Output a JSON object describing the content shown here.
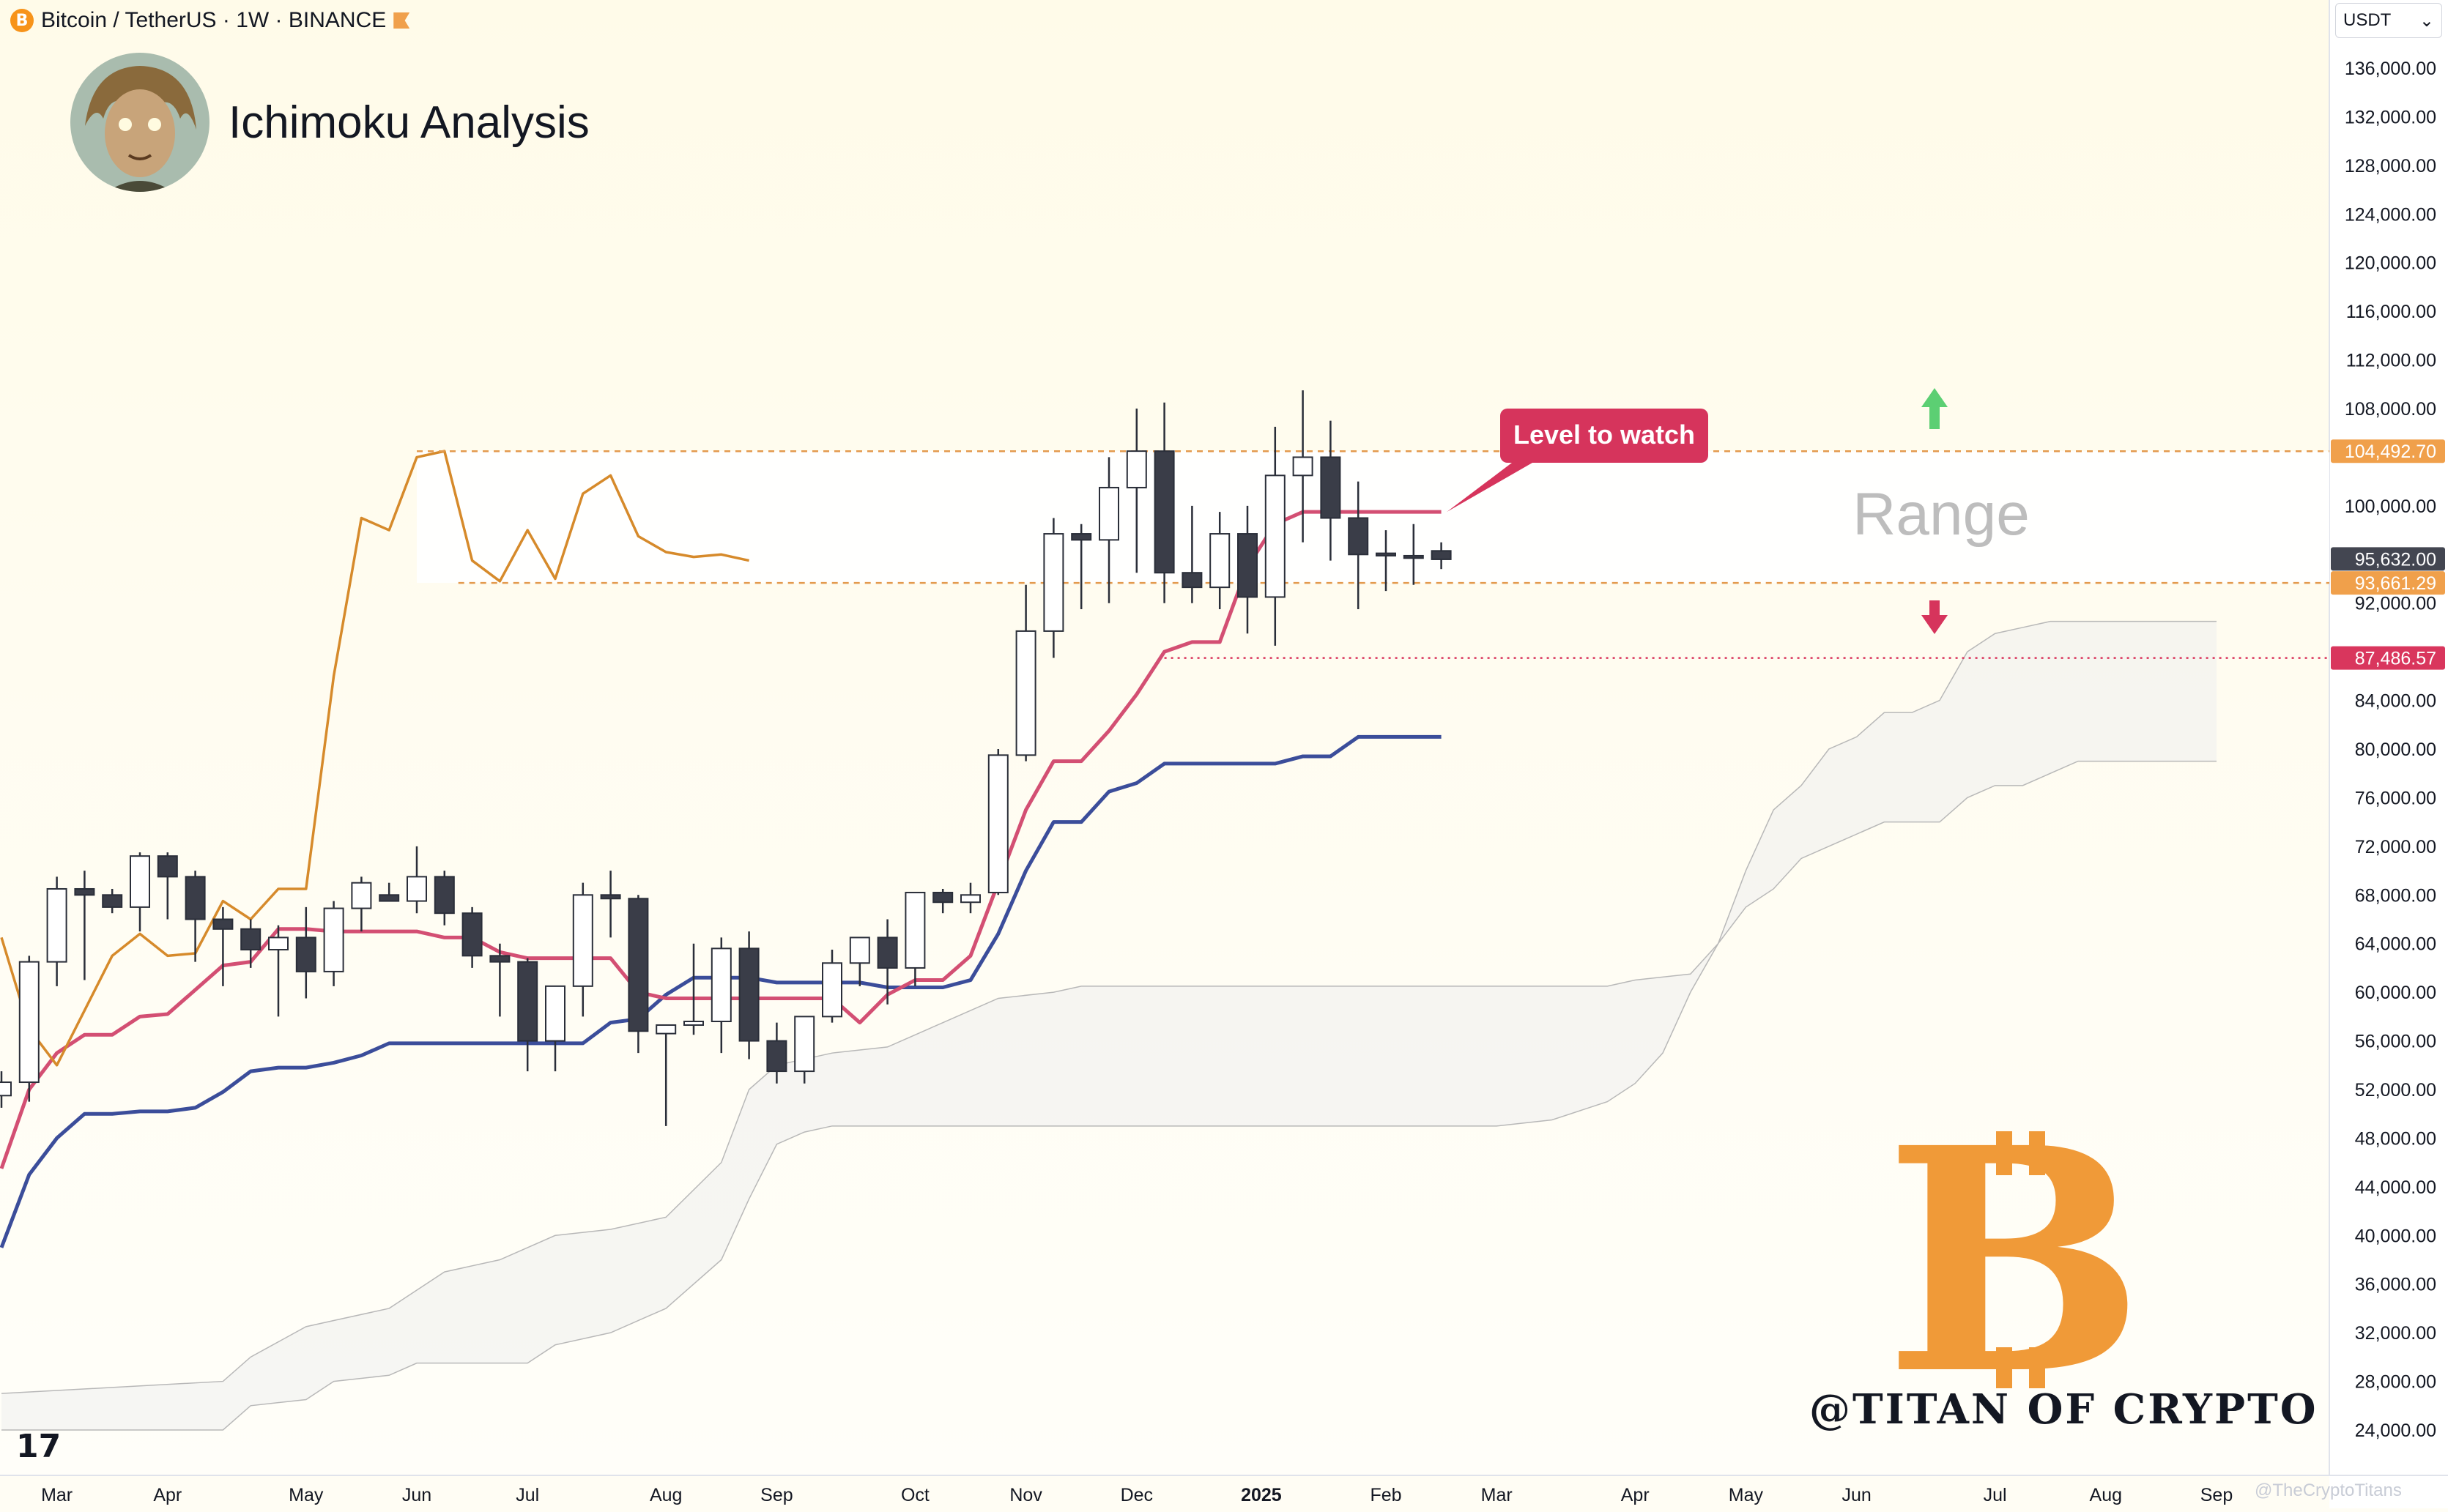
{
  "header": {
    "symbol": "Bitcoin / TetherUS · 1W · BINANCE",
    "coin_icon": "bitcoin-icon"
  },
  "branding": {
    "title": "Ichimoku Analysis",
    "watermark": "@TITAN OF CRYPTO",
    "corner_credit": "@TheCryptoTitans",
    "logo_glyph": "B",
    "tv_glyph": "17"
  },
  "currency_selector": {
    "value": "USDT"
  },
  "chart_data": {
    "type": "candlestick",
    "timeframe": "1W",
    "exchange": "BINANCE",
    "ylim": [
      22000,
      139000
    ],
    "ticks": [
      "136,000.00",
      "132,000.00",
      "128,000.00",
      "124,000.00",
      "120,000.00",
      "116,000.00",
      "112,000.00",
      "108,000.00",
      "100,000.00",
      "92,000.00",
      "84,000.00",
      "80,000.00",
      "76,000.00",
      "72,000.00",
      "68,000.00",
      "64,000.00",
      "60,000.00",
      "56,000.00",
      "52,000.00",
      "48,000.00",
      "44,000.00",
      "40,000.00",
      "36,000.00",
      "32,000.00",
      "28,000.00",
      "24,000.00"
    ],
    "tick_values": [
      136000,
      132000,
      128000,
      124000,
      120000,
      116000,
      112000,
      108000,
      100000,
      92000,
      84000,
      80000,
      76000,
      72000,
      68000,
      64000,
      60000,
      56000,
      52000,
      48000,
      44000,
      40000,
      36000,
      32000,
      28000,
      24000
    ],
    "x_labels": [
      "Mar",
      "Apr",
      "May",
      "Jun",
      "Jul",
      "Aug",
      "Sep",
      "Oct",
      "Nov",
      "Dec",
      "2025",
      "Feb",
      "Mar",
      "Apr",
      "May",
      "Jun",
      "Jul",
      "Aug",
      "Sep"
    ],
    "x_label_weeks": [
      2,
      6,
      11,
      15,
      19,
      24,
      28,
      33,
      37,
      41,
      45.5,
      50,
      54,
      59,
      63,
      67,
      72,
      76,
      80
    ],
    "price_badges": [
      {
        "label": "104,492.70",
        "value": 104492.7,
        "color": "#f0a04b"
      },
      {
        "label": "95,632.00",
        "value": 95632,
        "color": "#434651"
      },
      {
        "label": "93,661.29",
        "value": 93661.29,
        "color": "#f0a04b"
      },
      {
        "label": "87,486.57",
        "value": 87486.57,
        "color": "#d9365d"
      }
    ],
    "annotations": {
      "callout": "Level to watch",
      "range_label": "Range",
      "range_top": 104492.7,
      "range_bottom": 93661.29,
      "support": 87486.57
    },
    "candles": [
      [
        0,
        51500,
        53500,
        50500,
        52600
      ],
      [
        1,
        52600,
        63000,
        51000,
        62500
      ],
      [
        2,
        62500,
        69500,
        60500,
        68500
      ],
      [
        3,
        68500,
        70000,
        61000,
        68000
      ],
      [
        4,
        68000,
        68500,
        66500,
        67000
      ],
      [
        5,
        67000,
        71500,
        65000,
        71200
      ],
      [
        6,
        71200,
        71500,
        66000,
        69500
      ],
      [
        7,
        69500,
        70000,
        62500,
        66000
      ],
      [
        8,
        66000,
        67000,
        60500,
        65200
      ],
      [
        9,
        65200,
        66000,
        62000,
        63500
      ],
      [
        10,
        63500,
        65500,
        58000,
        64500
      ],
      [
        11,
        64500,
        67000,
        59500,
        61700
      ],
      [
        12,
        61700,
        67500,
        60500,
        66900
      ],
      [
        13,
        66900,
        69500,
        65000,
        69000
      ],
      [
        14,
        68000,
        69000,
        67500,
        67500
      ],
      [
        15,
        67500,
        72000,
        66500,
        69500
      ],
      [
        16,
        69500,
        70000,
        65500,
        66500
      ],
      [
        17,
        66500,
        67000,
        62000,
        63000
      ],
      [
        18,
        63000,
        64000,
        58000,
        62500
      ],
      [
        19,
        62500,
        62800,
        53500,
        56000
      ],
      [
        20,
        56000,
        60500,
        53500,
        60500
      ],
      [
        21,
        60500,
        69000,
        58000,
        68000
      ],
      [
        22,
        68000,
        70000,
        64500,
        67700
      ],
      [
        23,
        67700,
        68000,
        55000,
        56800
      ],
      [
        24,
        56600,
        57000,
        49000,
        57300
      ],
      [
        25,
        57300,
        64000,
        56500,
        57600
      ],
      [
        26,
        57600,
        64500,
        55000,
        63600
      ],
      [
        27,
        63600,
        65000,
        54500,
        56000
      ],
      [
        28,
        56000,
        57500,
        52500,
        53500
      ],
      [
        29,
        53500,
        58000,
        52500,
        58000
      ],
      [
        30,
        58000,
        63500,
        57500,
        62400
      ],
      [
        31,
        62400,
        64500,
        60500,
        64500
      ],
      [
        32,
        64500,
        66000,
        59000,
        62000
      ],
      [
        33,
        62000,
        68000,
        60500,
        68200
      ],
      [
        34,
        68200,
        68500,
        66500,
        67400
      ],
      [
        35,
        67400,
        69000,
        66500,
        68000
      ],
      [
        36,
        68200,
        80000,
        68000,
        79500
      ],
      [
        37,
        79500,
        93500,
        79000,
        89700
      ],
      [
        38,
        89700,
        99000,
        87500,
        97700
      ],
      [
        39,
        97700,
        98500,
        91500,
        97200
      ],
      [
        40,
        97200,
        104000,
        92000,
        101500
      ],
      [
        41,
        101500,
        108000,
        94500,
        104500
      ],
      [
        42,
        104500,
        108500,
        92000,
        94500
      ],
      [
        43,
        94500,
        100000,
        92000,
        93300
      ],
      [
        44,
        93300,
        99500,
        91500,
        97700
      ],
      [
        45,
        97700,
        100000,
        89500,
        92500
      ],
      [
        46,
        92500,
        106500,
        88500,
        102500
      ],
      [
        47,
        102500,
        109500,
        97000,
        104000
      ],
      [
        48,
        104000,
        107000,
        95500,
        99000
      ],
      [
        49,
        99000,
        102000,
        91500,
        96000
      ],
      [
        50,
        96100,
        98000,
        93000,
        95900
      ],
      [
        51,
        95900,
        98500,
        93500,
        95700
      ],
      [
        52,
        96300,
        97000,
        94800,
        95600
      ]
    ],
    "series": [
      {
        "name": "",
        "color": "#3b4d9a",
        "values": [
          [
            0,
            39000
          ],
          [
            1,
            45000
          ],
          [
            2,
            48000
          ],
          [
            3,
            50000
          ],
          [
            4,
            50000
          ],
          [
            5,
            50200
          ],
          [
            6,
            50200
          ],
          [
            7,
            50500
          ],
          [
            8,
            51800
          ],
          [
            9,
            53500
          ],
          [
            10,
            53800
          ],
          [
            11,
            53800
          ],
          [
            12,
            54200
          ],
          [
            13,
            54800
          ],
          [
            14,
            55800
          ],
          [
            15,
            55800
          ],
          [
            16,
            55800
          ],
          [
            17,
            55800
          ],
          [
            18,
            55800
          ],
          [
            19,
            55800
          ],
          [
            20,
            55800
          ],
          [
            21,
            55800
          ],
          [
            22,
            57500
          ],
          [
            23,
            57800
          ],
          [
            24,
            59800
          ],
          [
            25,
            61200
          ],
          [
            26,
            61200
          ],
          [
            27,
            61200
          ],
          [
            28,
            60800
          ],
          [
            29,
            60800
          ],
          [
            30,
            60800
          ],
          [
            31,
            60800
          ],
          [
            32,
            60400
          ],
          [
            33,
            60400
          ],
          [
            34,
            60400
          ],
          [
            35,
            61000
          ],
          [
            36,
            64800
          ],
          [
            37,
            70000
          ],
          [
            38,
            74000
          ],
          [
            39,
            74000
          ],
          [
            40,
            76500
          ],
          [
            41,
            77200
          ],
          [
            42,
            78800
          ],
          [
            43,
            78800
          ],
          [
            44,
            78800
          ],
          [
            45,
            78800
          ],
          [
            46,
            78800
          ],
          [
            47,
            79400
          ],
          [
            48,
            79400
          ],
          [
            49,
            81000
          ],
          [
            50,
            81000
          ],
          [
            51,
            81000
          ],
          [
            52,
            81000
          ]
        ]
      },
      {
        "name": "",
        "color": "#d34f73",
        "values": [
          [
            0,
            45500
          ],
          [
            1,
            52000
          ],
          [
            2,
            55000
          ],
          [
            3,
            56500
          ],
          [
            4,
            56500
          ],
          [
            5,
            58000
          ],
          [
            6,
            58200
          ],
          [
            7,
            60200
          ],
          [
            8,
            62200
          ],
          [
            9,
            62500
          ],
          [
            10,
            65200
          ],
          [
            11,
            65200
          ],
          [
            12,
            65000
          ],
          [
            13,
            65000
          ],
          [
            14,
            65000
          ],
          [
            15,
            65000
          ],
          [
            16,
            64500
          ],
          [
            17,
            64500
          ],
          [
            18,
            63300
          ],
          [
            19,
            62800
          ],
          [
            20,
            62800
          ],
          [
            21,
            62800
          ],
          [
            22,
            62800
          ],
          [
            23,
            60000
          ],
          [
            24,
            59500
          ],
          [
            25,
            59500
          ],
          [
            26,
            59500
          ],
          [
            27,
            59500
          ],
          [
            28,
            59500
          ],
          [
            29,
            59500
          ],
          [
            30,
            59500
          ],
          [
            31,
            57500
          ],
          [
            32,
            59800
          ],
          [
            33,
            61000
          ],
          [
            34,
            61000
          ],
          [
            35,
            63000
          ],
          [
            36,
            69000
          ],
          [
            37,
            75000
          ],
          [
            38,
            79000
          ],
          [
            39,
            79000
          ],
          [
            40,
            81500
          ],
          [
            41,
            84500
          ],
          [
            42,
            88000
          ],
          [
            43,
            88800
          ],
          [
            44,
            88800
          ],
          [
            45,
            95000
          ],
          [
            46,
            98500
          ],
          [
            47,
            99500
          ],
          [
            48,
            99500
          ],
          [
            49,
            99500
          ],
          [
            50,
            99500
          ],
          [
            51,
            99500
          ],
          [
            52,
            99500
          ]
        ]
      },
      {
        "name": "",
        "color": "#d68a2b",
        "values": [
          [
            0,
            64500
          ],
          [
            1,
            57000
          ],
          [
            2,
            54000
          ],
          [
            3,
            58500
          ],
          [
            4,
            63000
          ],
          [
            5,
            64800
          ],
          [
            6,
            63000
          ],
          [
            7,
            63200
          ],
          [
            8,
            67500
          ],
          [
            9,
            66000
          ],
          [
            10,
            68500
          ],
          [
            11,
            68500
          ],
          [
            12,
            86000
          ],
          [
            13,
            99000
          ],
          [
            14,
            98000
          ],
          [
            15,
            104000
          ],
          [
            16,
            104500
          ],
          [
            17,
            95500
          ],
          [
            18,
            93800
          ],
          [
            19,
            98000
          ],
          [
            20,
            94000
          ],
          [
            21,
            101000
          ],
          [
            22,
            102500
          ],
          [
            23,
            97500
          ],
          [
            24,
            96200
          ],
          [
            25,
            95800
          ],
          [
            26,
            96000
          ],
          [
            27,
            95500
          ]
        ]
      }
    ],
    "cloud": {
      "span_a": [
        [
          0,
          27000
        ],
        [
          4,
          27500
        ],
        [
          8,
          28000
        ],
        [
          9,
          30000
        ],
        [
          11,
          32500
        ],
        [
          12,
          33000
        ],
        [
          14,
          34000
        ],
        [
          15,
          35500
        ],
        [
          16,
          37000
        ],
        [
          18,
          38000
        ],
        [
          20,
          40000
        ],
        [
          22,
          40500
        ],
        [
          24,
          41500
        ],
        [
          26,
          46000
        ],
        [
          27,
          52000
        ],
        [
          28,
          54000
        ],
        [
          30,
          55000
        ],
        [
          32,
          55500
        ],
        [
          33,
          56500
        ],
        [
          35,
          58500
        ],
        [
          36,
          59500
        ],
        [
          38,
          60000
        ],
        [
          39,
          60500
        ],
        [
          47,
          60500
        ],
        [
          52,
          60500
        ],
        [
          58,
          60500
        ],
        [
          59,
          61000
        ],
        [
          61,
          61500
        ],
        [
          62,
          64000
        ],
        [
          63,
          70000
        ],
        [
          64,
          75000
        ],
        [
          65,
          77000
        ],
        [
          66,
          80000
        ],
        [
          67,
          81000
        ],
        [
          68,
          83000
        ],
        [
          69,
          83000
        ],
        [
          70,
          84000
        ],
        [
          71,
          88000
        ],
        [
          72,
          89500
        ],
        [
          73,
          90000
        ],
        [
          74,
          90500
        ],
        [
          80,
          90500
        ]
      ],
      "span_b": [
        [
          0,
          24000
        ],
        [
          8,
          24000
        ],
        [
          9,
          26000
        ],
        [
          11,
          26500
        ],
        [
          12,
          28000
        ],
        [
          14,
          28500
        ],
        [
          15,
          29500
        ],
        [
          19,
          29500
        ],
        [
          20,
          31000
        ],
        [
          22,
          32000
        ],
        [
          24,
          34000
        ],
        [
          26,
          38000
        ],
        [
          27,
          43000
        ],
        [
          28,
          47500
        ],
        [
          29,
          48500
        ],
        [
          30,
          49000
        ],
        [
          40,
          49000
        ],
        [
          48,
          49000
        ],
        [
          54,
          49000
        ],
        [
          56,
          49500
        ],
        [
          58,
          51000
        ],
        [
          59,
          52500
        ],
        [
          60,
          55000
        ],
        [
          61,
          60000
        ],
        [
          62,
          64000
        ],
        [
          63,
          67000
        ],
        [
          64,
          68500
        ],
        [
          65,
          71000
        ],
        [
          66,
          72000
        ],
        [
          67,
          73000
        ],
        [
          68,
          74000
        ],
        [
          69,
          74000
        ],
        [
          70,
          74000
        ],
        [
          71,
          76000
        ],
        [
          72,
          77000
        ],
        [
          73,
          77000
        ],
        [
          74,
          78000
        ],
        [
          75,
          79000
        ],
        [
          80,
          79000
        ]
      ]
    }
  }
}
